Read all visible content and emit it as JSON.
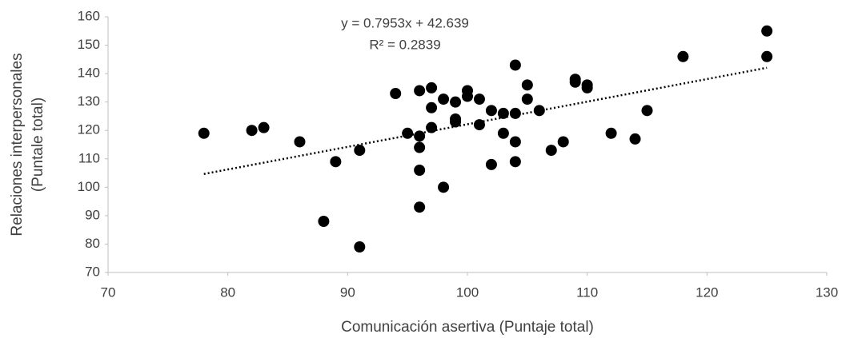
{
  "chart_data": {
    "type": "scatter",
    "x_label": "Comunicación asertiva (Puntaje total)",
    "y_label": [
      "Relaciones interpersonales",
      "(Puntale total)"
    ],
    "x": [
      78,
      82,
      83,
      86,
      88,
      89,
      91,
      91,
      94,
      95,
      96,
      96,
      96,
      96,
      96,
      97,
      97,
      97,
      98,
      98,
      99,
      99,
      99,
      100,
      100,
      101,
      101,
      102,
      102,
      103,
      103,
      104,
      104,
      104,
      104,
      105,
      105,
      106,
      107,
      108,
      109,
      109,
      110,
      110,
      112,
      114,
      115,
      118,
      125,
      125
    ],
    "y": [
      119,
      120,
      121,
      116,
      88,
      109,
      113,
      79,
      133,
      119,
      134,
      118,
      114,
      106,
      93,
      135,
      128,
      121,
      131,
      100,
      130,
      124,
      123,
      134,
      132,
      131,
      122,
      127,
      108,
      126,
      119,
      143,
      126,
      116,
      109,
      136,
      131,
      127,
      113,
      116,
      138,
      137,
      136,
      135,
      119,
      117,
      127,
      146,
      155,
      146
    ],
    "color": "#000000",
    "trendline": {
      "slope": 0.7953,
      "intercept": 42.639,
      "equation": "y = 0.7953x + 42.639",
      "r2": "R² = 0.2839",
      "style": "dotted"
    },
    "xlim": [
      70,
      130
    ],
    "xticks": [
      70,
      80,
      90,
      100,
      110,
      120,
      130
    ],
    "ylim": [
      70,
      160
    ],
    "yticks": [
      70,
      80,
      90,
      100,
      110,
      120,
      130,
      140,
      150,
      160
    ],
    "grid": false
  }
}
